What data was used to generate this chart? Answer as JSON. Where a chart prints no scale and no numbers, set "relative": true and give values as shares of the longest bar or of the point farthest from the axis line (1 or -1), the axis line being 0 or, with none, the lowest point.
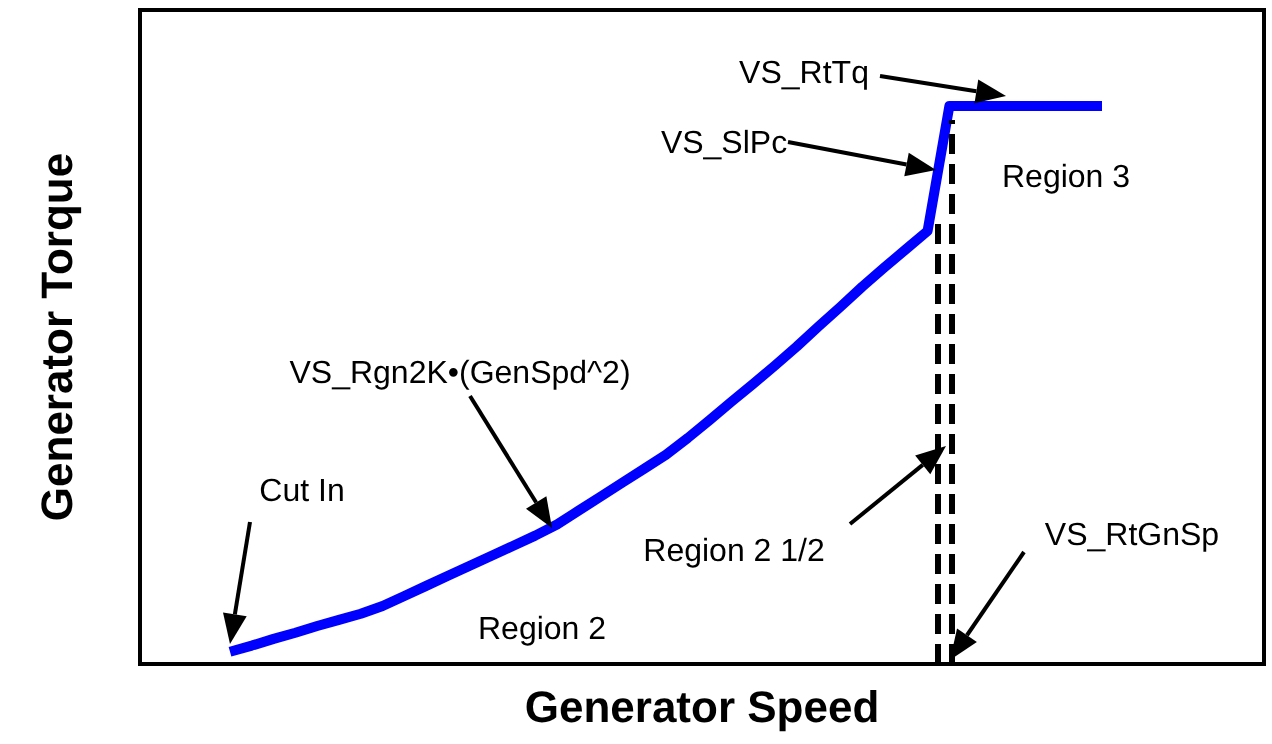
{
  "chart_data": {
    "type": "line",
    "relative": true,
    "xlabel": "Generator Speed",
    "ylabel": "Generator Torque",
    "tick_labels": false,
    "marker": "none",
    "line_style": "solid",
    "categories": [
      null,
      null,
      null,
      null,
      null,
      null,
      null,
      null,
      null,
      null,
      null,
      null,
      null,
      null,
      null,
      null,
      null,
      null,
      null,
      null,
      null,
      null,
      null,
      null,
      null,
      null,
      null,
      null,
      null,
      null,
      null,
      null,
      null,
      null,
      null,
      null,
      null,
      null,
      null,
      null,
      null
    ],
    "series": [
      {
        "color": "#0000ff",
        "values": [
          0.022,
          0.033,
          0.045,
          0.056,
          0.068,
          0.079,
          0.09,
          0.104,
          0.122,
          0.14,
          0.158,
          0.176,
          0.194,
          0.212,
          0.23,
          0.25,
          0.275,
          0.3,
          0.325,
          0.35,
          0.375,
          0.405,
          0.437,
          0.47,
          0.502,
          0.535,
          0.569,
          0.605,
          0.64,
          0.676,
          0.71,
          0.743,
          0.776,
          1,
          1,
          1,
          1,
          1,
          1,
          1,
          1
        ]
      }
    ],
    "annotations": [
      "VS_RtTq",
      "VS_SlPc",
      "VS_Rgn2K•(GenSpd^2)",
      "Cut In",
      "Region 2 1/2",
      "VS_RtGnSp",
      "Region 2",
      "Region 3"
    ]
  }
}
